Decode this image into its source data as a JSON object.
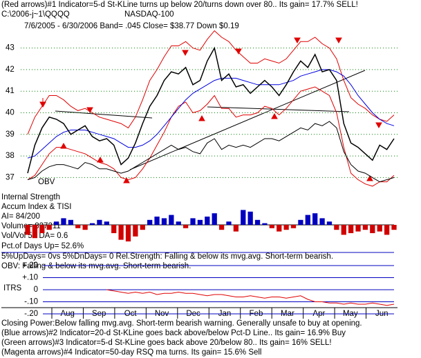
{
  "chart_data": {
    "type": "line",
    "header": [
      "(Red arrows)#1 Indicator=5-d St-KLine turns up below 20/turns down over 80.. Its gain= 17.7% SELL!",
      "C:\\2006-j~1\\QQQQ",
      "NASDAQ-100",
      "7/6/2005 - 6/30/2006  Band= .045   Close= $38.77   Down $0.19"
    ],
    "panel_texts": {
      "obv": "OBV",
      "internal_strength": "Internal Strength",
      "accum": "Accum Index & TISI",
      "ai": "AI= 84/200",
      "volume": "Volume= 827211",
      "vol_ratio": "Vol/Vol 50 DA= 0.6",
      "pct_up": "Pct.of Days Up= 52.6%",
      "up_dn": "5%UpDays= 0vs 5%DnDays= 0  Rel.Strength: Falling & below its mvg.avg. Short-term bearish.",
      "obv_status": "OBV: Falling & below its mvg.avg. Short-term bearish.",
      "itrs": "ITRS"
    },
    "footer": [
      "Closing Power:Below falling mvg.avg. Short-term bearish warning. Generally unsafe to buy at opening.",
      "(Blue arrows)#2 Indicator=20-d St-KLine goes back above/below Pct-D Line.. Its gain= 16.9% Buy",
      "(Green arrows)#3 Indicator=5-d St-KLine goes back above 20/below 80.. Its gain= 16% SELL!",
      "(Magenta arrows)#4 Indicator=50-day RSQ ma turns. Its gain= 15.6% Sell"
    ],
    "categories": [
      "Aug",
      "Sep",
      "Oct",
      "Nov",
      "Dec",
      "Jan",
      "Feb",
      "Mar",
      "Apr",
      "May",
      "Jun"
    ],
    "ylim": [
      36.5,
      43.5
    ],
    "yticks": [
      37,
      38,
      39,
      40,
      41,
      42,
      43
    ],
    "grid": true,
    "close": {
      "color": "#000000",
      "values": [
        37.2,
        38.5,
        39.3,
        39.8,
        39.7,
        39.5,
        39.0,
        39.2,
        39.4,
        38.9,
        38.7,
        38.8,
        38.5,
        37.6,
        37.9,
        38.6,
        39.5,
        40.3,
        40.8,
        41.5,
        41.9,
        41.8,
        42.1,
        41.3,
        41.5,
        42.4,
        43.0,
        41.5,
        41.8,
        41.2,
        41.3,
        40.9,
        41.2,
        41.5,
        41.2,
        40.8,
        41.3,
        41.9,
        42.4,
        42.1,
        42.7,
        41.9,
        42.0,
        41.5,
        39.5,
        38.6,
        38.4,
        38.1,
        37.8,
        38.5,
        38.3,
        38.8
      ]
    },
    "upper_band": {
      "color": "#e00000",
      "values": [
        39,
        39.8,
        40.3,
        40.8,
        40.8,
        40.6,
        40.3,
        40.1,
        40.2,
        40.0,
        39.8,
        39.7,
        39.6,
        39.5,
        39.3,
        39.8,
        40.6,
        41.5,
        42.0,
        42.6,
        43.1,
        43.1,
        43.3,
        43.0,
        42.9,
        43.4,
        43.8,
        43.5,
        43.3,
        42.9,
        42.6,
        42.3,
        42.3,
        42.5,
        42.4,
        42.3,
        42.5,
        42.9,
        43.3,
        43.3,
        43.5,
        43.2,
        43.0,
        42.5,
        41.5,
        40.7,
        40.4,
        40.2,
        39.9,
        39.7,
        39.6,
        39.9
      ]
    },
    "lower_band": {
      "color": "#e00000",
      "values": [
        36.9,
        37.1,
        37.6,
        38.1,
        38.4,
        38.4,
        38.3,
        38.2,
        38.1,
        37.9,
        37.7,
        37.6,
        37.4,
        37.0,
        36.9,
        37.0,
        37.4,
        37.9,
        38.5,
        39.1,
        39.8,
        40.3,
        40.5,
        40.0,
        40.1,
        40.4,
        40.8,
        40.2,
        40.2,
        39.8,
        39.9,
        39.9,
        40.0,
        40.3,
        40.2,
        39.9,
        40.2,
        40.6,
        41.0,
        41.1,
        41.2,
        41.0,
        40.8,
        40.0,
        38.4,
        37.2,
        36.9,
        36.7,
        36.6,
        36.8,
        36.8,
        37.1
      ]
    },
    "moving_average": {
      "color": "#0000e0",
      "values": [
        37.9,
        38.0,
        38.3,
        38.6,
        38.9,
        39.1,
        39.2,
        39.2,
        39.2,
        39.1,
        39.0,
        38.9,
        38.8,
        38.6,
        38.4,
        38.4,
        38.5,
        38.7,
        39.0,
        39.4,
        39.8,
        40.2,
        40.6,
        40.9,
        41.1,
        41.3,
        41.5,
        41.6,
        41.6,
        41.6,
        41.5,
        41.4,
        41.3,
        41.3,
        41.3,
        41.3,
        41.4,
        41.5,
        41.7,
        41.8,
        41.9,
        42.0,
        42.0,
        41.9,
        41.7,
        41.3,
        40.8,
        40.4,
        40.0,
        39.7,
        39.5,
        39.4
      ]
    },
    "obv": {
      "color": "#000000",
      "values": [
        36.9,
        37.0,
        37.3,
        37.5,
        37.6,
        37.6,
        37.5,
        37.4,
        37.7,
        37.6,
        37.4,
        37.4,
        37.3,
        37.2,
        37.3,
        37.5,
        37.7,
        37.9,
        38.1,
        38.3,
        38.5,
        38.3,
        38.4,
        38.2,
        38.1,
        38.6,
        38.8,
        38.3,
        38.5,
        38.4,
        38.5,
        38.4,
        38.6,
        38.8,
        38.8,
        38.7,
        38.9,
        39.1,
        39.3,
        39.2,
        39.5,
        39.4,
        39.6,
        39.3,
        38.2,
        37.6,
        37.3,
        37.2,
        37.0,
        36.8,
        36.9,
        37.0
      ]
    },
    "accum_index": {
      "color": "#0000c0",
      "negative_color": "#d00000",
      "values": [
        -0.6,
        -0.8,
        -0.5,
        -0.3,
        0.2,
        0.4,
        0.3,
        -0.2,
        -0.3,
        0.1,
        0.3,
        0.2,
        -0.5,
        -0.9,
        -1,
        -0.7,
        -0.3,
        0.3,
        0.5,
        0.4,
        0.6,
        0.2,
        -0.2,
        0.4,
        0.3,
        0.5,
        0.7,
        -0.3,
        0.2,
        -0.4,
        0.9,
        0.8,
        0.3,
        0.1,
        -0.2,
        -0.4,
        -0.3,
        -0.2,
        0.3,
        0.6,
        0.7,
        0.4,
        0.2,
        -0.3,
        -0.6,
        -0.5,
        -0.4,
        -0.3,
        -0.5,
        -0.4,
        -0.6,
        -0.3
      ]
    },
    "itrs": {
      "color": "#e00000",
      "ylim": [
        -0.2,
        0.2
      ],
      "yticks": [
        {
          "value": 0.2,
          "label": "+.20"
        },
        {
          "value": 0.1,
          "label": "+.10"
        },
        0,
        {
          "value": -0.1,
          "label": "-.10"
        },
        {
          "value": -0.2,
          "label": "-.20"
        }
      ],
      "values": [
        null,
        null,
        null,
        null,
        null,
        null,
        null,
        null,
        null,
        null,
        null,
        0.0,
        -0.01,
        -0.02,
        -0.03,
        -0.02,
        -0.03,
        -0.02,
        -0.04,
        -0.03,
        -0.03,
        -0.02,
        -0.03,
        -0.03,
        -0.04,
        -0.05,
        -0.04,
        -0.04,
        -0.05,
        -0.06,
        -0.06,
        -0.05,
        -0.06,
        -0.07,
        -0.06,
        -0.06,
        -0.07,
        -0.06,
        -0.05,
        -0.08,
        -0.1,
        -0.1,
        -0.11,
        -0.11,
        -0.12,
        -0.11,
        -0.12,
        -0.12,
        -0.11,
        -0.12,
        -0.13,
        -0.12
      ]
    }
  }
}
